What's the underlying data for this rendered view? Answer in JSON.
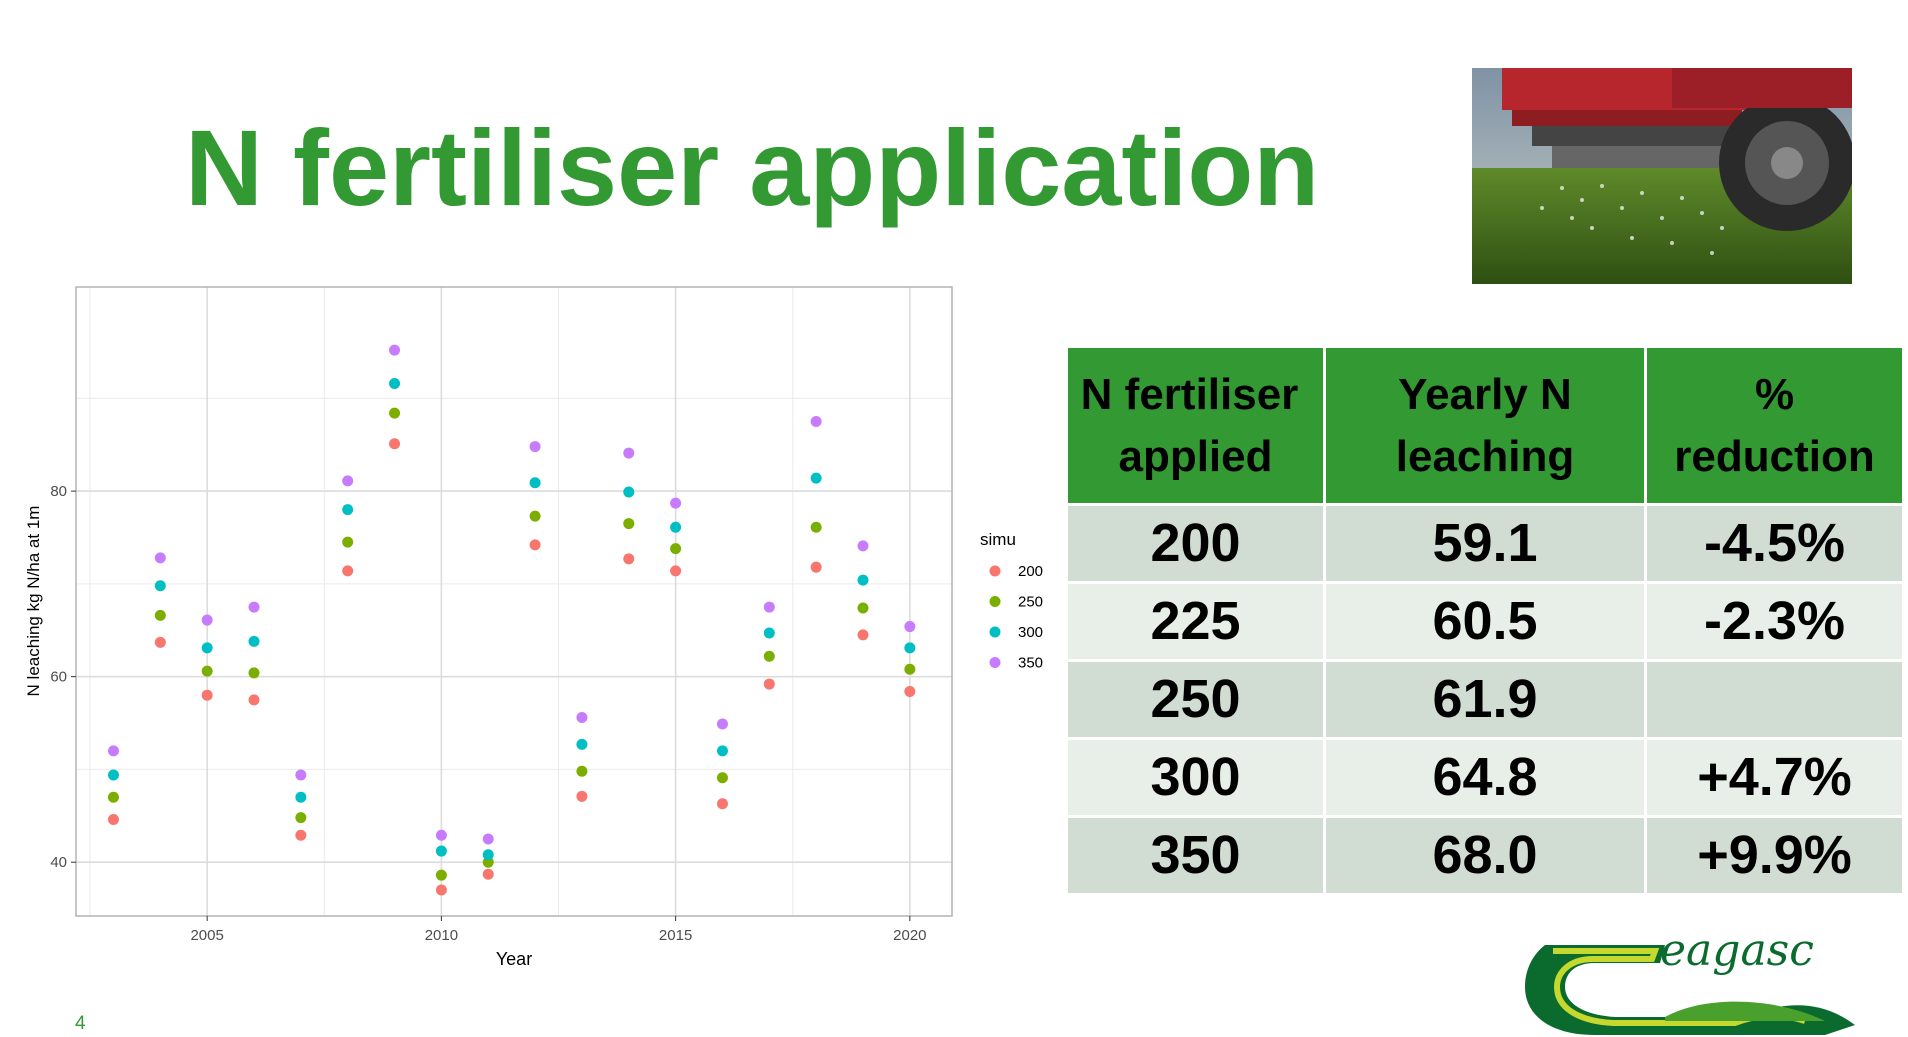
{
  "slide": {
    "title": "N fertiliser application",
    "page_number": "4"
  },
  "photo": {
    "icon": "tractor-fertiliser-spreader-photo"
  },
  "logo": {
    "text": "eagasc",
    "icon": "teagasc-logo"
  },
  "colors": {
    "accent": "#339933",
    "series_200": "#F8766D",
    "series_250": "#7CAE00",
    "series_300": "#00BFC4",
    "series_350": "#C77CFF"
  },
  "chart_data": {
    "type": "scatter",
    "xlabel": "Year",
    "ylabel": "N leaching kg N/ha at 1m",
    "legend_title": "simu",
    "legend_position": "right",
    "grid": true,
    "xlim": [
      2002.2,
      2020.9
    ],
    "ylim": [
      34.2,
      102
    ],
    "xticks": [
      2005,
      2010,
      2015,
      2020
    ],
    "yticks": [
      40,
      60,
      80
    ],
    "x": [
      2003,
      2004,
      2005,
      2006,
      2007,
      2008,
      2009,
      2010,
      2011,
      2012,
      2013,
      2014,
      2015,
      2016,
      2017,
      2018,
      2019,
      2020
    ],
    "series": [
      {
        "name": "200",
        "color": "#F8766D",
        "values": [
          44.6,
          63.7,
          58.0,
          57.5,
          42.9,
          71.4,
          85.1,
          37.0,
          38.7,
          74.2,
          47.1,
          72.7,
          71.4,
          46.3,
          59.2,
          71.8,
          64.5,
          58.4
        ]
      },
      {
        "name": "250",
        "color": "#7CAE00",
        "values": [
          47.0,
          66.6,
          60.6,
          60.4,
          44.8,
          74.5,
          88.4,
          38.6,
          40.0,
          77.3,
          49.8,
          76.5,
          73.8,
          49.1,
          62.2,
          76.1,
          67.4,
          60.8
        ]
      },
      {
        "name": "300",
        "color": "#00BFC4",
        "values": [
          49.4,
          69.8,
          63.1,
          63.8,
          47.0,
          78.0,
          91.6,
          41.2,
          40.8,
          80.9,
          52.7,
          79.9,
          76.1,
          52.0,
          64.7,
          81.4,
          70.4,
          63.1
        ]
      },
      {
        "name": "350",
        "color": "#C77CFF",
        "values": [
          52.0,
          72.8,
          66.1,
          67.5,
          49.4,
          81.1,
          95.2,
          42.9,
          42.5,
          84.8,
          55.6,
          84.1,
          78.7,
          54.9,
          67.5,
          87.5,
          74.1,
          65.4
        ]
      }
    ]
  },
  "table": {
    "headers": [
      "N fertiliser applied",
      "Yearly N leaching",
      "% reduction"
    ],
    "header_lines": [
      [
        "N fertiliser",
        "applied"
      ],
      [
        "Yearly N",
        "leaching"
      ],
      [
        "%",
        "reduction"
      ]
    ],
    "rows": [
      [
        "200",
        "59.1",
        "-4.5%"
      ],
      [
        "225",
        "60.5",
        "-2.3%"
      ],
      [
        "250",
        "61.9",
        ""
      ],
      [
        "300",
        "64.8",
        "+4.7%"
      ],
      [
        "350",
        "68.0",
        "+9.9%"
      ]
    ]
  }
}
